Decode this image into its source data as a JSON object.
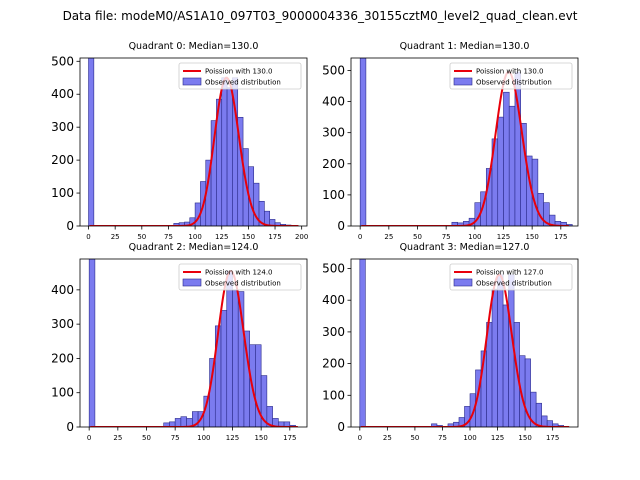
{
  "figure": {
    "suptitle": "Data file: modeM0/AS1A10_097T03_9000004336_30155cztM0_level2_quad_clean.evt"
  },
  "colors": {
    "bar_fill": "#7b7bef",
    "bar_edge": "#2a2a8a",
    "poisson": "#e8000b"
  },
  "chart_data": [
    {
      "type": "bar",
      "title": "Quadrant 0: Median=130.0",
      "median": 130.0,
      "legend": {
        "line": "Poission with 130.0",
        "bars": "Observed distribution",
        "placement": "top-right"
      },
      "xlim": [
        -8,
        205
      ],
      "ylim": [
        0,
        510
      ],
      "xticks": [
        0,
        25,
        50,
        75,
        100,
        125,
        150,
        175,
        200
      ],
      "yticks": [
        0,
        100,
        200,
        300,
        400,
        500
      ],
      "bin_width": 5,
      "bins": [
        [
          0,
          510
        ],
        [
          80,
          8
        ],
        [
          85,
          10
        ],
        [
          90,
          12
        ],
        [
          95,
          25
        ],
        [
          100,
          70
        ],
        [
          105,
          135
        ],
        [
          110,
          200
        ],
        [
          115,
          320
        ],
        [
          120,
          385
        ],
        [
          125,
          450
        ],
        [
          130,
          420
        ],
        [
          135,
          450
        ],
        [
          140,
          330
        ],
        [
          145,
          235
        ],
        [
          150,
          180
        ],
        [
          155,
          130
        ],
        [
          160,
          75
        ],
        [
          165,
          45
        ],
        [
          170,
          20
        ],
        [
          175,
          10
        ],
        [
          180,
          5
        ],
        [
          185,
          3
        ]
      ]
    },
    {
      "type": "bar",
      "title": "Quadrant 1: Median=130.0",
      "median": 130.0,
      "legend": {
        "line": "Poission with 130.0",
        "bars": "Observed distribution",
        "placement": "top-right"
      },
      "xlim": [
        -8,
        190
      ],
      "ylim": [
        0,
        540
      ],
      "xticks": [
        0,
        25,
        50,
        75,
        100,
        125,
        150,
        175
      ],
      "yticks": [
        0,
        100,
        200,
        300,
        400,
        500
      ],
      "bin_width": 5,
      "bins": [
        [
          0,
          540
        ],
        [
          80,
          12
        ],
        [
          85,
          10
        ],
        [
          90,
          15
        ],
        [
          95,
          25
        ],
        [
          100,
          75
        ],
        [
          105,
          110
        ],
        [
          110,
          185
        ],
        [
          115,
          280
        ],
        [
          120,
          350
        ],
        [
          125,
          430
        ],
        [
          130,
          385
        ],
        [
          135,
          495
        ],
        [
          140,
          330
        ],
        [
          145,
          225
        ],
        [
          150,
          215
        ],
        [
          155,
          105
        ],
        [
          160,
          75
        ],
        [
          165,
          35
        ],
        [
          170,
          15
        ],
        [
          175,
          12
        ],
        [
          180,
          5
        ]
      ]
    },
    {
      "type": "bar",
      "title": "Quadrant 2: Median=124.0",
      "median": 124.0,
      "legend": {
        "line": "Poission with 124.0",
        "bars": "Observed distribution",
        "placement": "top-right"
      },
      "xlim": [
        -8,
        190
      ],
      "ylim": [
        0,
        490
      ],
      "xticks": [
        0,
        25,
        50,
        75,
        100,
        125,
        150,
        175
      ],
      "yticks": [
        0,
        100,
        200,
        300,
        400
      ],
      "bin_width": 5,
      "bins": [
        [
          0,
          490
        ],
        [
          65,
          12
        ],
        [
          70,
          15
        ],
        [
          75,
          25
        ],
        [
          80,
          30
        ],
        [
          85,
          25
        ],
        [
          90,
          45
        ],
        [
          95,
          45
        ],
        [
          100,
          90
        ],
        [
          105,
          200
        ],
        [
          110,
          295
        ],
        [
          115,
          340
        ],
        [
          120,
          455
        ],
        [
          125,
          400
        ],
        [
          130,
          395
        ],
        [
          135,
          280
        ],
        [
          140,
          240
        ],
        [
          145,
          240
        ],
        [
          150,
          150
        ],
        [
          155,
          60
        ],
        [
          160,
          25
        ],
        [
          165,
          15
        ],
        [
          170,
          15
        ],
        [
          175,
          5
        ]
      ]
    },
    {
      "type": "bar",
      "title": "Quadrant 3: Median=127.0",
      "median": 127.0,
      "legend": {
        "line": "Poission with 127.0",
        "bars": "Observed distribution",
        "placement": "top-right"
      },
      "xlim": [
        -8,
        198
      ],
      "ylim": [
        0,
        530
      ],
      "xticks": [
        0,
        25,
        50,
        75,
        100,
        125,
        150,
        175
      ],
      "yticks": [
        0,
        100,
        200,
        300,
        400,
        500
      ],
      "bin_width": 5,
      "bins": [
        [
          0,
          530
        ],
        [
          65,
          10
        ],
        [
          70,
          5
        ],
        [
          80,
          10
        ],
        [
          85,
          15
        ],
        [
          90,
          30
        ],
        [
          95,
          65
        ],
        [
          100,
          105
        ],
        [
          105,
          180
        ],
        [
          110,
          240
        ],
        [
          115,
          330
        ],
        [
          120,
          435
        ],
        [
          125,
          480
        ],
        [
          130,
          385
        ],
        [
          135,
          480
        ],
        [
          140,
          330
        ],
        [
          145,
          225
        ],
        [
          150,
          215
        ],
        [
          155,
          110
        ],
        [
          160,
          75
        ],
        [
          165,
          35
        ],
        [
          170,
          20
        ],
        [
          175,
          10
        ],
        [
          180,
          5
        ]
      ]
    }
  ]
}
